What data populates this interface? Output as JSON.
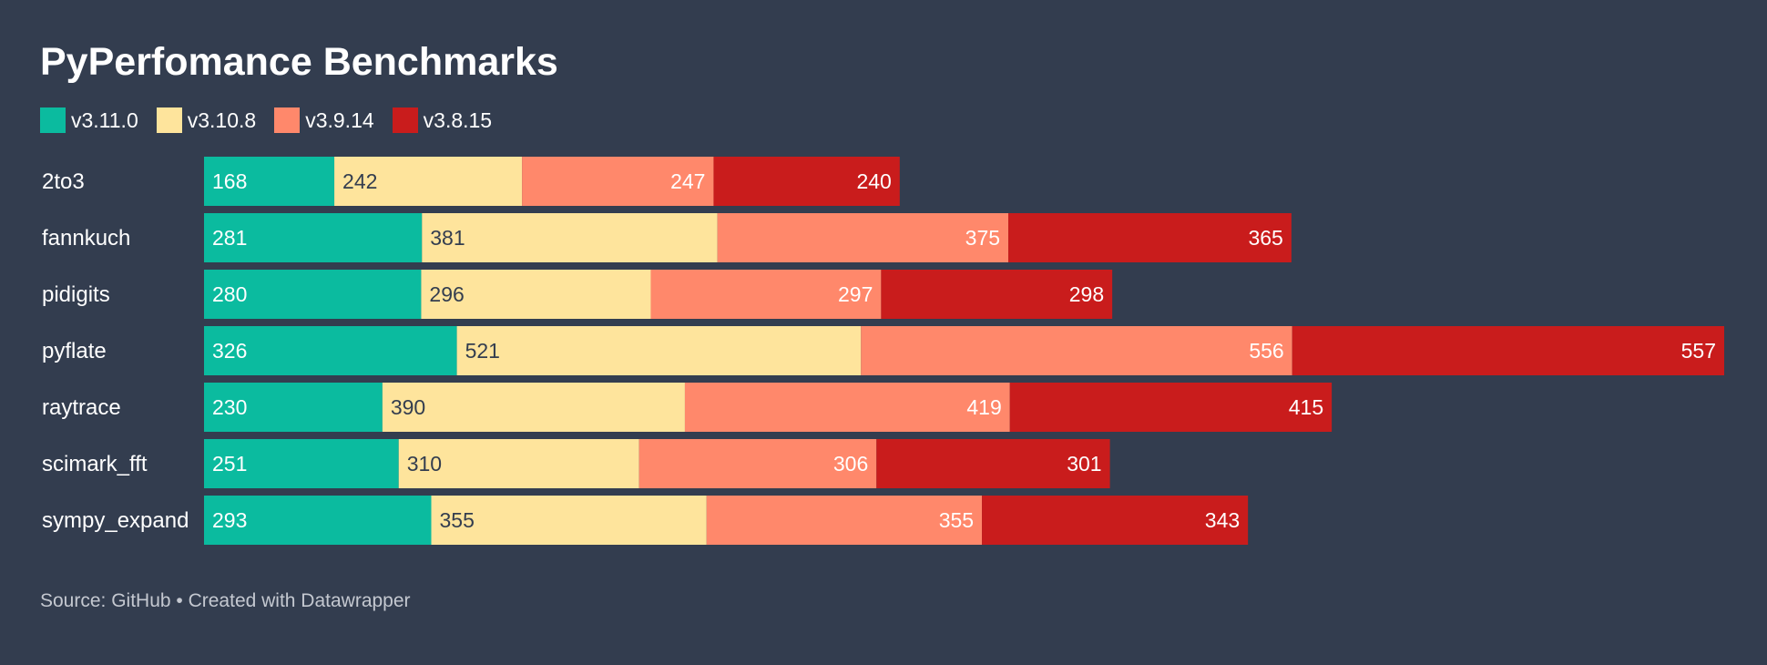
{
  "chart_data": {
    "type": "bar",
    "orientation": "horizontal",
    "stacked": true,
    "title": "PyPerfomance Benchmarks",
    "source": "Source: GitHub • Created with Datawrapper",
    "categories": [
      "2to3",
      "fannkuch",
      "pidigits",
      "pyflate",
      "raytrace",
      "scimark_fft",
      "sympy_expand"
    ],
    "series": [
      {
        "name": "v3.11.0",
        "color": "#0bbb9f",
        "label_color": "#ffffff",
        "label_align": "left",
        "values": [
          168,
          281,
          280,
          326,
          230,
          251,
          293
        ]
      },
      {
        "name": "v3.10.8",
        "color": "#fee49c",
        "label_color": "#333d4f",
        "label_align": "left",
        "values": [
          242,
          381,
          296,
          521,
          390,
          310,
          355
        ]
      },
      {
        "name": "v3.9.14",
        "color": "#ff886b",
        "label_color": "#ffffff",
        "label_align": "right",
        "values": [
          247,
          375,
          297,
          556,
          419,
          306,
          355
        ]
      },
      {
        "name": "v3.8.15",
        "color": "#c91c1c",
        "label_color": "#ffffff",
        "label_align": "right",
        "values": [
          240,
          365,
          298,
          557,
          415,
          301,
          343
        ]
      }
    ],
    "legend_position": "top-left",
    "grid": false
  }
}
